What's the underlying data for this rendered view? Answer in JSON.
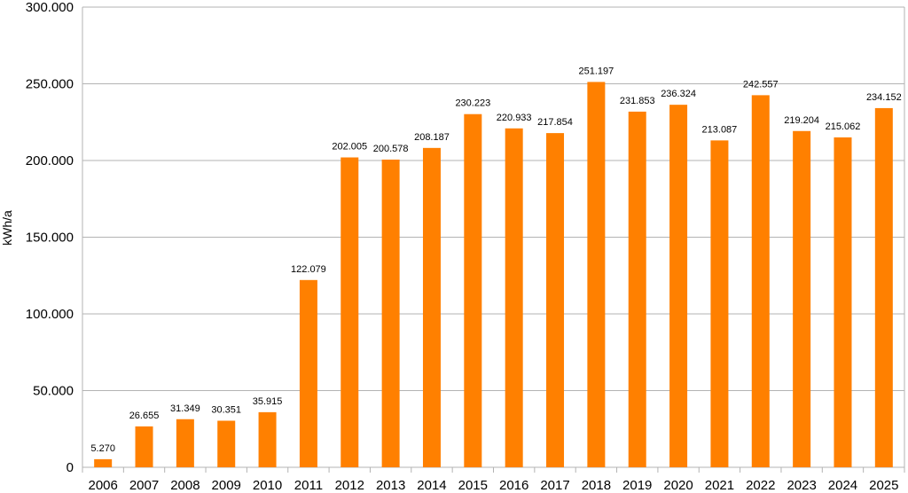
{
  "chart_data": {
    "type": "bar",
    "title": "",
    "xlabel": "",
    "ylabel": "kWh/a",
    "ylim": [
      0,
      300000
    ],
    "y_ticks": [
      0,
      50000,
      100000,
      150000,
      200000,
      250000,
      300000
    ],
    "y_tick_labels": [
      "0",
      "50.000",
      "100.000",
      "150.000",
      "200.000",
      "250.000",
      "300.000"
    ],
    "grid": true,
    "bar_color": "#ff8000",
    "grid_color": "#b3b3b3",
    "categories": [
      "2006",
      "2007",
      "2008",
      "2009",
      "2010",
      "2011",
      "2012",
      "2013",
      "2014",
      "2015",
      "2016",
      "2017",
      "2018",
      "2019",
      "2020",
      "2021",
      "2022",
      "2023",
      "2024",
      "2025"
    ],
    "values": [
      5270,
      26655,
      31349,
      30351,
      35915,
      122079,
      202005,
      200578,
      208187,
      230223,
      220933,
      217854,
      251197,
      231853,
      236324,
      213087,
      242557,
      219204,
      215062,
      234152
    ],
    "value_labels": [
      "5.270",
      "26.655",
      "31.349",
      "30.351",
      "35.915",
      "122.079",
      "202.005",
      "200.578",
      "208.187",
      "230.223",
      "220.933",
      "217.854",
      "251.197",
      "231.853",
      "236.324",
      "213.087",
      "242.557",
      "219.204",
      "215.062",
      "234.152"
    ]
  }
}
